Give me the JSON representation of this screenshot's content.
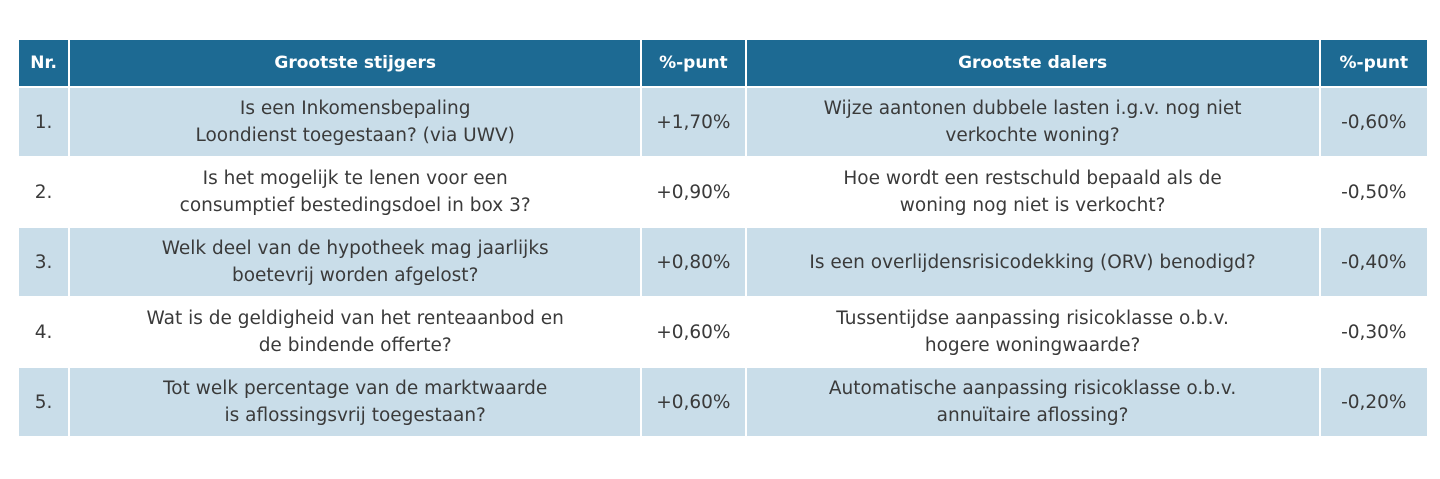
{
  "table": {
    "headers": [
      "Nr.",
      "Grootste stijgers",
      "%-punt",
      "Grootste dalers",
      "%-punt"
    ],
    "rows": [
      {
        "nr": "1.",
        "riser_line1": "Is een Inkomensbepaling",
        "riser_line2": "Loondienst toegestaan? (via UWV)",
        "riser_pct": "+1,70%",
        "faller_line1": "Wijze aantonen dubbele lasten i.g.v. nog niet",
        "faller_line2": "verkochte woning?",
        "faller_pct": "-0,60%"
      },
      {
        "nr": "2.",
        "riser_line1": "Is het mogelijk te lenen voor een",
        "riser_line2": "consumptief bestedingsdoel in box 3?",
        "riser_pct": "+0,90%",
        "faller_line1": "Hoe wordt een restschuld bepaald als de",
        "faller_line2": "woning nog niet is verkocht?",
        "faller_pct": "-0,50%"
      },
      {
        "nr": "3.",
        "riser_line1": "Welk deel van de hypotheek mag jaarlijks",
        "riser_line2": "boetevrij worden afgelost?",
        "riser_pct": "+0,80%",
        "faller_line1": "Is een overlijdensrisicodekking (ORV) benodigd?",
        "faller_line2": "",
        "faller_pct": "-0,40%"
      },
      {
        "nr": "4.",
        "riser_line1": "Wat is de geldigheid van het renteaanbod en",
        "riser_line2": "de bindende offerte?",
        "riser_pct": "+0,60%",
        "faller_line1": "Tussentijdse aanpassing risicoklasse o.b.v.",
        "faller_line2": "hogere woningwaarde?",
        "faller_pct": "-0,30%"
      },
      {
        "nr": "5.",
        "riser_line1": "Tot welk percentage van de marktwaarde",
        "riser_line2": "is aflossingsvrij toegestaan?",
        "riser_pct": "+0,60%",
        "faller_line1": "Automatische aanpassing risicoklasse o.b.v.",
        "faller_line2": "annuïtaire aflossing?",
        "faller_pct": "-0,20%"
      }
    ]
  },
  "colors": {
    "header_bg": "#1d6a93",
    "header_text": "#ffffff",
    "row_alt_bg": "#c9dde9",
    "row_bg": "#ffffff",
    "body_text": "#3a3a3a"
  }
}
